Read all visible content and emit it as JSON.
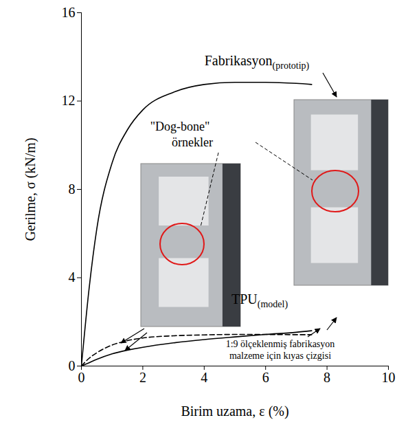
{
  "chart_data": {
    "type": "line",
    "xlabel": "Birim uzama, ε (%)",
    "ylabel": "Gerilme, σ (kN/m)",
    "xlim": [
      0,
      10
    ],
    "ylim": [
      0,
      16
    ],
    "xticks": [
      0,
      2,
      4,
      6,
      8,
      10
    ],
    "yticks": [
      0,
      4,
      8,
      12,
      16
    ],
    "grid": false,
    "x": [
      0,
      0.25,
      0.5,
      1,
      1.5,
      2,
      3,
      4,
      5,
      6,
      7,
      7.5
    ],
    "series": [
      {
        "name": "Fabrikasyon(prototip)",
        "color": "#000000",
        "line_style": "solid",
        "values": [
          0,
          3.5,
          6.2,
          9.2,
          10.7,
          11.6,
          12.4,
          12.75,
          12.85,
          12.85,
          12.8,
          12.75
        ]
      },
      {
        "name": "TPU(model)",
        "color": "#000000",
        "line_style": "solid",
        "values": [
          0,
          0.15,
          0.3,
          0.55,
          0.72,
          0.85,
          1.05,
          1.2,
          1.32,
          1.43,
          1.53,
          1.6
        ]
      },
      {
        "name": "1:9 ölçeklenmiş fabrikasyon malzeme için kıyas çizgisi",
        "color": "#000000",
        "line_style": "dashed",
        "values": [
          0,
          0.35,
          0.6,
          0.95,
          1.15,
          1.27,
          1.37,
          1.41,
          1.43,
          1.43,
          1.42,
          1.42
        ]
      }
    ],
    "annotations": [
      "\"Dog-bone\" örnekler"
    ]
  }
}
